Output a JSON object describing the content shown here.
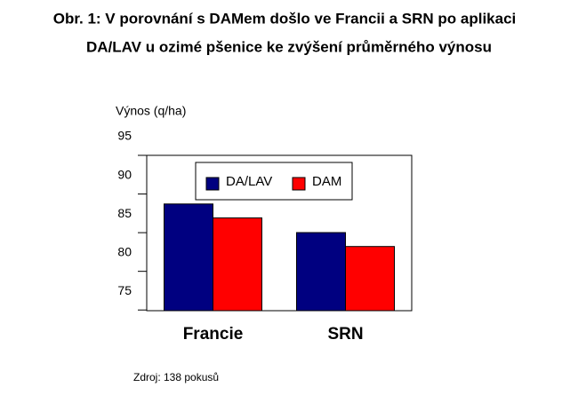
{
  "chart_data": {
    "type": "bar",
    "title": [
      "Obr. 1: V porovnání s DAMem došlo ve Francii a SRN po aplikaci",
      "DA/LAV u ozimé pšenice ke zvýšení průměrného výnosu"
    ],
    "y_label": "Výnos (q/ha)",
    "categories": [
      "Francie",
      "SRN"
    ],
    "series": [
      {
        "name": "DA/LAV",
        "color": "#000080",
        "values": [
          86.3,
          82.6
        ]
      },
      {
        "name": "DAM",
        "color": "#ff0000",
        "values": [
          84.5,
          80.8
        ]
      }
    ],
    "ylim": [
      72.5,
      95
    ],
    "yticks": [
      75,
      80,
      85,
      90,
      95
    ],
    "source": "Zdroj: 138 pokusů"
  }
}
